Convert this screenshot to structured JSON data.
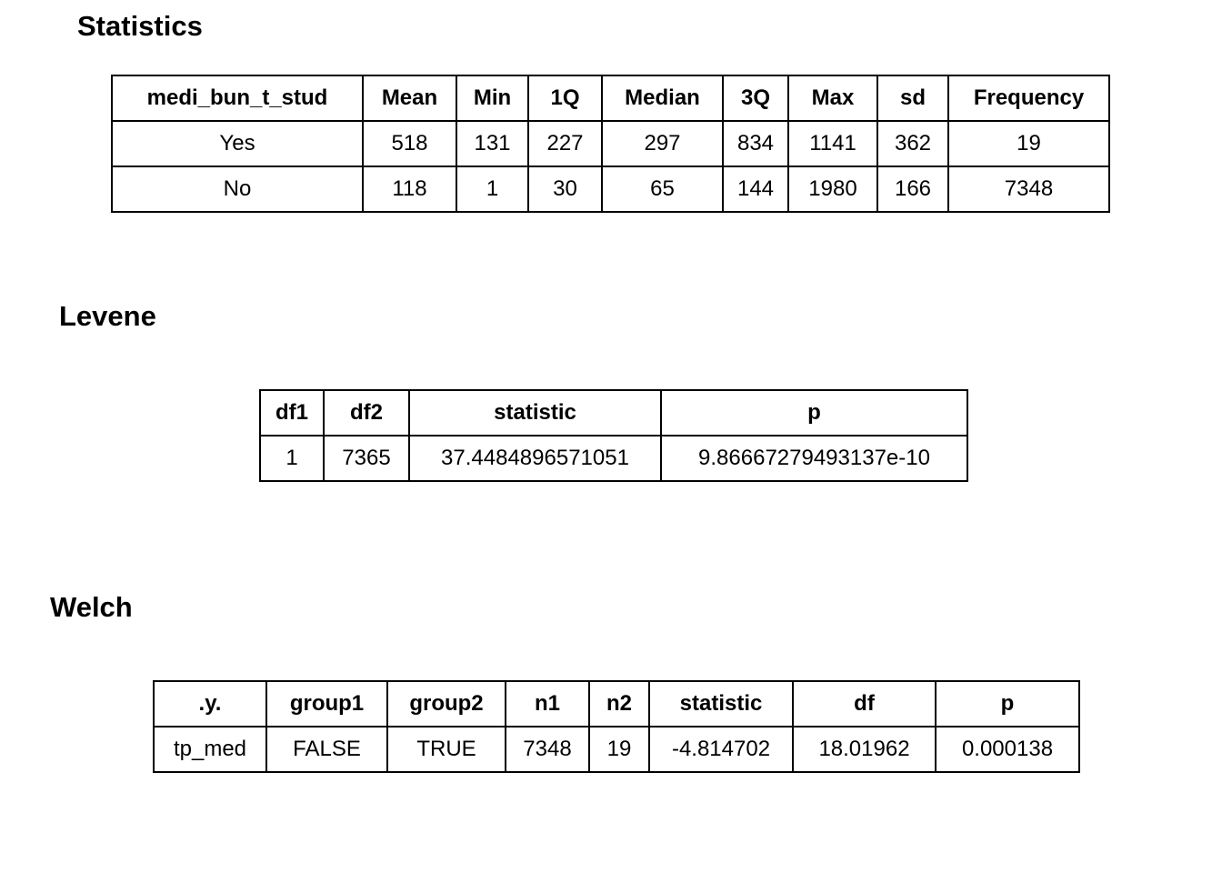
{
  "page": {
    "background_color": "#ffffff",
    "text_color": "#000000",
    "border_color": "#000000"
  },
  "sections": [
    {
      "title": "Statistics",
      "table": {
        "type": "table",
        "headers": [
          "medi_bun_t_stud",
          "Mean",
          "Min",
          "1Q",
          "Median",
          "3Q",
          "Max",
          "sd",
          "Frequency"
        ],
        "rows": [
          [
            "Yes",
            "518",
            "131",
            "227",
            "297",
            "834",
            "1141",
            "362",
            "19"
          ],
          [
            "No",
            "118",
            "1",
            "30",
            "65",
            "144",
            "1980",
            "166",
            "7348"
          ]
        ]
      }
    },
    {
      "title": "Levene",
      "table": {
        "type": "table",
        "headers": [
          "df1",
          "df2",
          "statistic",
          "p"
        ],
        "rows": [
          [
            "1",
            "7365",
            "37.4484896571051",
            "9.86667279493137e-10"
          ]
        ]
      }
    },
    {
      "title": "Welch",
      "table": {
        "type": "table",
        "headers": [
          ".y.",
          "group1",
          "group2",
          "n1",
          "n2",
          "statistic",
          "df",
          "p"
        ],
        "rows": [
          [
            "tp_med",
            "FALSE",
            "TRUE",
            "7348",
            "19",
            "-4.814702",
            "18.01962",
            "0.000138"
          ]
        ]
      }
    }
  ]
}
